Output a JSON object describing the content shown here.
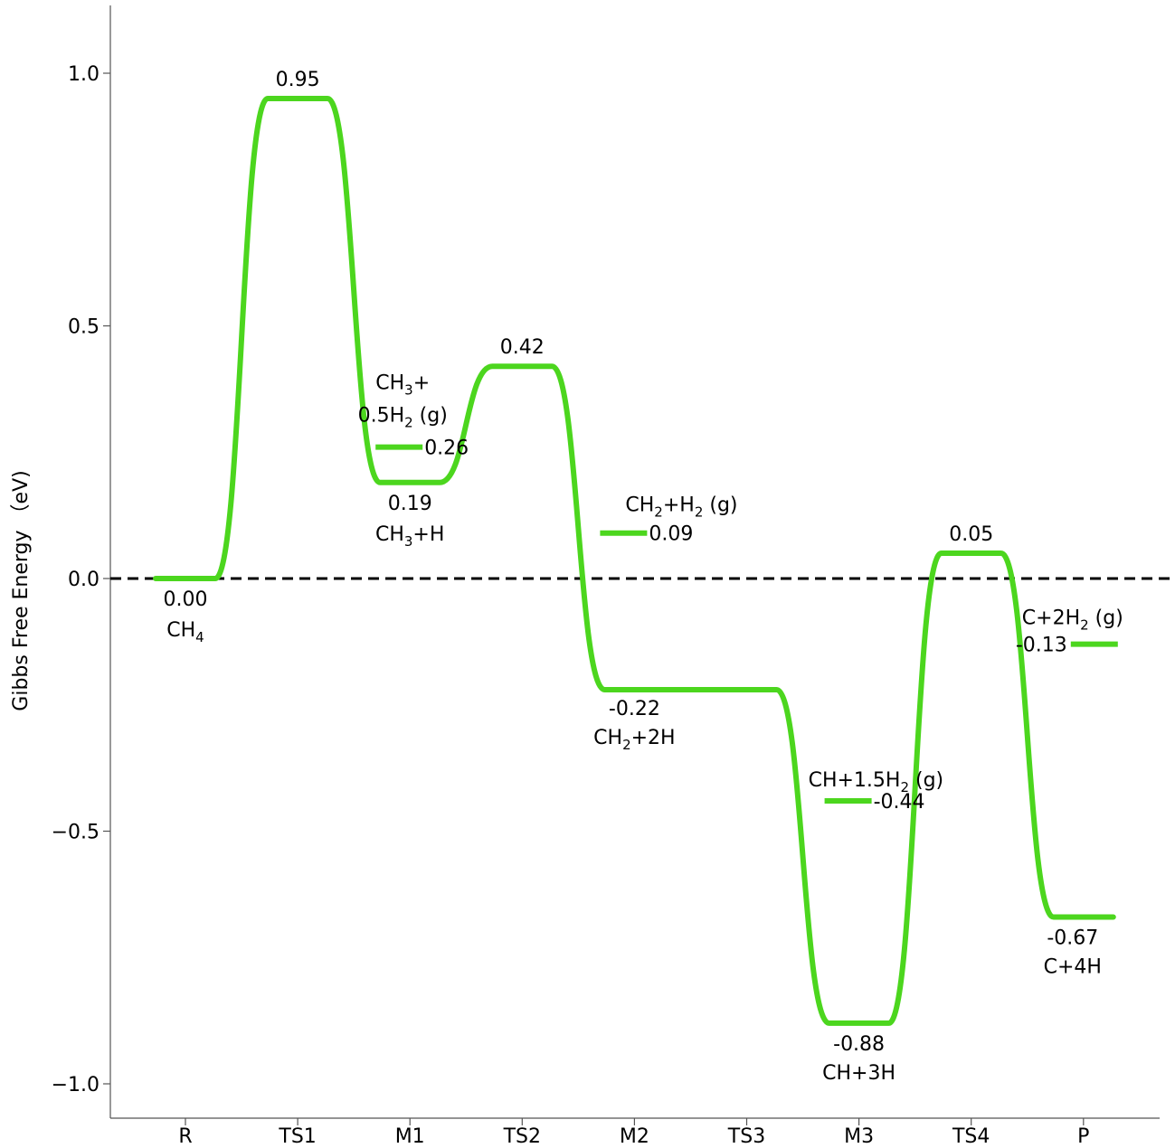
{
  "chart_data": {
    "type": "line",
    "title": "",
    "xlabel": "",
    "ylabel": "Gibbs Free Energy （eV)",
    "ylim": [
      -1.07,
      1.13
    ],
    "yticks": [
      -1.0,
      -0.5,
      0.0,
      0.5,
      1.0
    ],
    "ytick_labels": [
      "−1.0",
      "−0.5",
      "0.0",
      "0.5",
      "1.0"
    ],
    "categories": [
      "R",
      "TS1",
      "M1",
      "TS2",
      "M2",
      "TS3",
      "M3",
      "TS4",
      "P"
    ],
    "reference_line": {
      "y": 0.0,
      "style": "dashed",
      "color": "#000000"
    },
    "series_color": "#4cd61e",
    "profile": [
      0.0,
      0.95,
      0.19,
      0.42,
      -0.22,
      -0.22,
      -0.88,
      0.05,
      -0.67
    ],
    "profile_labels": [
      {
        "category": "R",
        "value_text": "0.00",
        "species": "CH",
        "species_sub": "4"
      },
      {
        "category": "TS1",
        "value_text": "0.95"
      },
      {
        "category": "M1",
        "value_text": "0.19",
        "species": "CH",
        "species_sub": "3",
        "species_tail": "+H"
      },
      {
        "category": "TS2",
        "value_text": "0.42"
      },
      {
        "category": "M2",
        "value_text": "-0.22",
        "species": "CH",
        "species_sub": "2",
        "species_tail": "+2H"
      },
      {
        "category": "M3",
        "value_text": "-0.88",
        "species": "CH+3H"
      },
      {
        "category": "TS4",
        "value_text": "0.05"
      },
      {
        "category": "P",
        "value_text": "-0.67",
        "species": "C+4H"
      }
    ],
    "gas_levels": [
      {
        "after": "M1",
        "value": 0.26,
        "value_text": "0.26",
        "line1": "CH₃+",
        "line2_main": "0.5H",
        "line2_sub": "2",
        "line2_tail": " (g)"
      },
      {
        "after": "M2",
        "value": 0.09,
        "value_text": "0.09",
        "label_main": "CH",
        "label_sub": "2",
        "label_mid": "+H",
        "label_sub2": "2",
        "label_tail": " (g)"
      },
      {
        "after": "M3",
        "value": -0.44,
        "value_text": "-0.44",
        "label_main": "CH+1.5H",
        "label_sub": "2",
        "label_tail": " (g)"
      },
      {
        "after": "P",
        "value": -0.13,
        "value_text": "-0.13",
        "label_main": "C+2H",
        "label_sub": "2",
        "label_tail": " (g)"
      }
    ]
  }
}
